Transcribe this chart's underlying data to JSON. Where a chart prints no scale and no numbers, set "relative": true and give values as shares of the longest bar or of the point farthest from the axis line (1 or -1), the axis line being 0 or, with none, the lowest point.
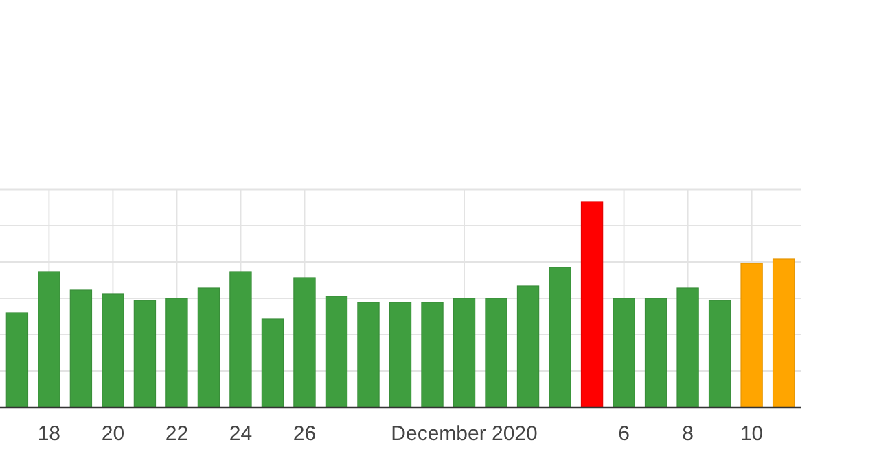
{
  "chart_data": {
    "type": "bar",
    "relative": true,
    "grid": true,
    "categories": [
      null,
      "18",
      null,
      "20",
      null,
      "22",
      null,
      "24",
      null,
      "26",
      null,
      null,
      null,
      null,
      "December 2020",
      null,
      null,
      null,
      null,
      "6",
      null,
      "8",
      null,
      "10",
      null
    ],
    "values": [
      0.46,
      0.66,
      0.57,
      0.55,
      0.52,
      0.53,
      0.58,
      0.66,
      0.43,
      0.63,
      0.54,
      0.51,
      0.51,
      0.51,
      0.53,
      0.53,
      0.59,
      0.68,
      1,
      0.53,
      0.53,
      0.58,
      0.52,
      0.7,
      0.72
    ],
    "colors": [
      "#3f9e3f",
      "#3f9e3f",
      "#3f9e3f",
      "#3f9e3f",
      "#3f9e3f",
      "#3f9e3f",
      "#3f9e3f",
      "#3f9e3f",
      "#3f9e3f",
      "#3f9e3f",
      "#3f9e3f",
      "#3f9e3f",
      "#3f9e3f",
      "#3f9e3f",
      "#3f9e3f",
      "#3f9e3f",
      "#3f9e3f",
      "#3f9e3f",
      "#ff0000",
      "#3f9e3f",
      "#3f9e3f",
      "#3f9e3f",
      "#3f9e3f",
      "#ffa500",
      "#ffa500"
    ]
  }
}
